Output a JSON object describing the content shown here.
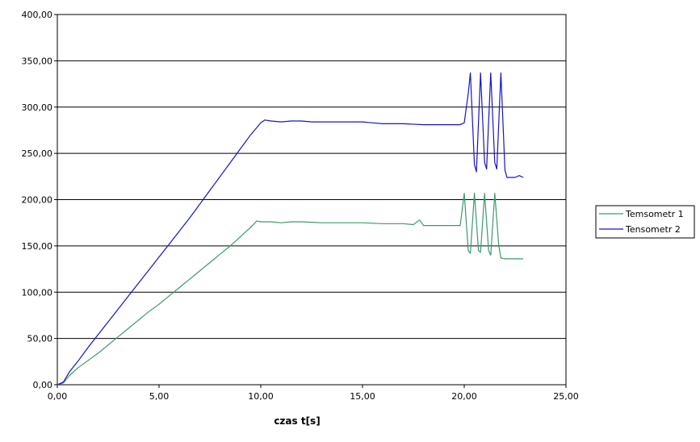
{
  "chart_data": {
    "type": "line",
    "xlabel": "czas t[s]",
    "ylabel": "",
    "xlim": [
      0,
      25
    ],
    "ylim": [
      0,
      400
    ],
    "x_ticks": [
      "0,00",
      "5,00",
      "10,00",
      "15,00",
      "20,00",
      "25,00"
    ],
    "y_ticks": [
      "0,00",
      "50,00",
      "100,00",
      "150,00",
      "200,00",
      "250,00",
      "300,00",
      "350,00",
      "400,00"
    ],
    "grid": "horizontal",
    "legend_position": "right",
    "series": [
      {
        "name": "Temsometr 1",
        "color": "#3a9a6a",
        "points": [
          [
            0,
            0
          ],
          [
            0.3,
            2
          ],
          [
            0.6,
            10
          ],
          [
            1.0,
            18
          ],
          [
            1.5,
            26
          ],
          [
            2.0,
            34
          ],
          [
            2.5,
            43
          ],
          [
            3.0,
            52
          ],
          [
            3.5,
            61
          ],
          [
            4.0,
            70
          ],
          [
            4.5,
            79
          ],
          [
            5.0,
            87
          ],
          [
            5.5,
            96
          ],
          [
            6.0,
            105
          ],
          [
            6.5,
            114
          ],
          [
            7.0,
            123
          ],
          [
            7.5,
            132
          ],
          [
            8.0,
            141
          ],
          [
            8.5,
            150
          ],
          [
            9.0,
            160
          ],
          [
            9.5,
            170
          ],
          [
            9.8,
            177
          ],
          [
            10.0,
            176
          ],
          [
            10.5,
            176
          ],
          [
            11.0,
            175
          ],
          [
            11.5,
            176
          ],
          [
            12.0,
            176
          ],
          [
            13.0,
            175
          ],
          [
            14.0,
            175
          ],
          [
            15.0,
            175
          ],
          [
            16.0,
            174
          ],
          [
            17.0,
            174
          ],
          [
            17.5,
            173
          ],
          [
            17.8,
            178
          ],
          [
            18.0,
            172
          ],
          [
            19.0,
            172
          ],
          [
            19.8,
            172
          ],
          [
            20.0,
            207
          ],
          [
            20.2,
            145
          ],
          [
            20.3,
            142
          ],
          [
            20.5,
            207
          ],
          [
            20.7,
            145
          ],
          [
            20.8,
            143
          ],
          [
            21.0,
            207
          ],
          [
            21.2,
            145
          ],
          [
            21.3,
            140
          ],
          [
            21.5,
            207
          ],
          [
            21.7,
            150
          ],
          [
            21.8,
            137
          ],
          [
            22.0,
            136
          ],
          [
            22.5,
            136
          ],
          [
            22.9,
            136
          ]
        ]
      },
      {
        "name": "Tensometr 2",
        "color": "#1414c8",
        "points": [
          [
            0,
            0
          ],
          [
            0.3,
            3
          ],
          [
            0.6,
            14
          ],
          [
            1.0,
            25
          ],
          [
            1.5,
            40
          ],
          [
            2.0,
            54
          ],
          [
            2.5,
            68
          ],
          [
            3.0,
            82
          ],
          [
            3.5,
            96
          ],
          [
            4.0,
            110
          ],
          [
            4.5,
            124
          ],
          [
            5.0,
            138
          ],
          [
            5.5,
            152
          ],
          [
            6.0,
            166
          ],
          [
            6.5,
            180
          ],
          [
            7.0,
            195
          ],
          [
            7.5,
            210
          ],
          [
            8.0,
            225
          ],
          [
            8.5,
            240
          ],
          [
            9.0,
            255
          ],
          [
            9.5,
            270
          ],
          [
            10.0,
            283
          ],
          [
            10.2,
            286
          ],
          [
            10.5,
            285
          ],
          [
            11.0,
            284
          ],
          [
            11.5,
            285
          ],
          [
            12.0,
            285
          ],
          [
            12.5,
            284
          ],
          [
            13.0,
            284
          ],
          [
            14.0,
            284
          ],
          [
            15.0,
            284
          ],
          [
            15.5,
            283
          ],
          [
            16.0,
            282
          ],
          [
            17.0,
            282
          ],
          [
            18.0,
            281
          ],
          [
            19.0,
            281
          ],
          [
            19.8,
            281
          ],
          [
            20.0,
            283
          ],
          [
            20.2,
            315
          ],
          [
            20.3,
            337
          ],
          [
            20.5,
            238
          ],
          [
            20.6,
            230
          ],
          [
            20.8,
            337
          ],
          [
            21.0,
            240
          ],
          [
            21.1,
            233
          ],
          [
            21.3,
            337
          ],
          [
            21.5,
            240
          ],
          [
            21.6,
            233
          ],
          [
            21.8,
            337
          ],
          [
            22.0,
            232
          ],
          [
            22.1,
            224
          ],
          [
            22.5,
            224
          ],
          [
            22.7,
            226
          ],
          [
            22.9,
            224
          ]
        ]
      }
    ]
  }
}
